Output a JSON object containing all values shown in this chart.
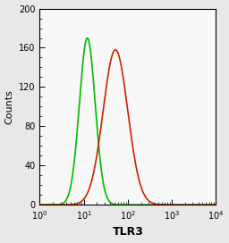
{
  "xlabel": "TLR3",
  "ylabel": "Counts",
  "xlim_log": [
    0,
    4
  ],
  "ylim": [
    0,
    200
  ],
  "yticks": [
    0,
    40,
    80,
    120,
    160,
    200
  ],
  "green_peak_log": 1.08,
  "green_peak_height": 170,
  "green_sigma_log": 0.18,
  "red_peak_log": 1.72,
  "red_peak_height": 158,
  "red_sigma_log": 0.28,
  "green_color": "#00bb00",
  "red_color": "#cc2200",
  "linewidth": 1.2,
  "background_color": "#e8e8e8",
  "plot_bg_color": "#f8f8f8",
  "xlabel_fontsize": 9,
  "xlabel_fontweight": "bold",
  "ylabel_fontsize": 8,
  "tick_labelsize": 7
}
